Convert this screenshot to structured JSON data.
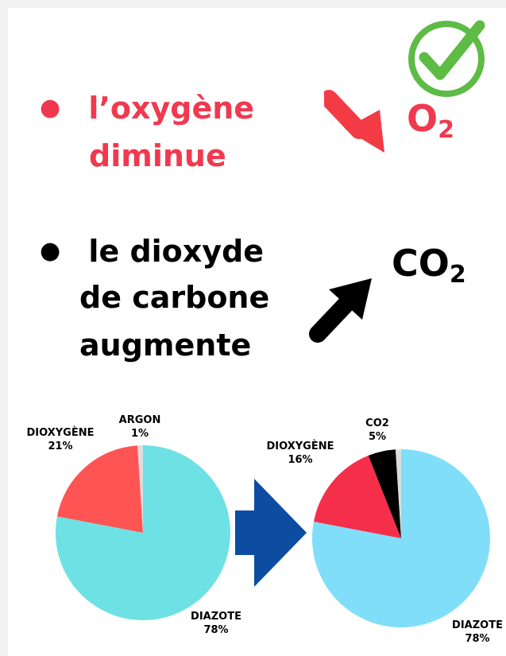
{
  "bullets": {
    "oxygen": {
      "line1": "l’oxygène",
      "line2": "diminue",
      "formula_main": "O",
      "formula_sub": "2",
      "color": "#f0394f"
    },
    "co2": {
      "line1": "le dioxyde",
      "line2": "de carbone",
      "line3": "augmente",
      "formula_main": "CO",
      "formula_sub": "2",
      "color": "#000000"
    }
  },
  "icons": {
    "check": "green-check-circle-icon",
    "down_arrow": "red-down-arrow-icon",
    "up_arrow": "black-up-arrow-icon",
    "transition_arrow": "blue-right-arrow-icon"
  },
  "colors": {
    "check_green": "#5dbb46",
    "down_arrow_red": "#f23b45",
    "transition_blue": "#0c4da2"
  },
  "chart_data": [
    {
      "type": "pie",
      "slices": [
        {
          "label": "DIAZOTE",
          "value": 78,
          "value_label": "78%",
          "color": "#6de1e4"
        },
        {
          "label": "DIOXYGÈNE",
          "value": 21,
          "value_label": "21%",
          "color": "#fe5454"
        },
        {
          "label": "ARGON",
          "value": 1,
          "value_label": "1%",
          "color": "#dddddd"
        }
      ]
    },
    {
      "type": "pie",
      "slices": [
        {
          "label": "DIAZOTE",
          "value": 78,
          "value_label": "78%",
          "color": "#80def9"
        },
        {
          "label": "DIOXYGÈNE",
          "value": 16,
          "value_label": "16%",
          "color": "#f52e4a"
        },
        {
          "label": "CO2",
          "value": 5,
          "value_label": "5%",
          "color": "#000000"
        },
        {
          "label": "",
          "value": 1,
          "value_label": "",
          "color": "#dddddd"
        }
      ]
    }
  ]
}
